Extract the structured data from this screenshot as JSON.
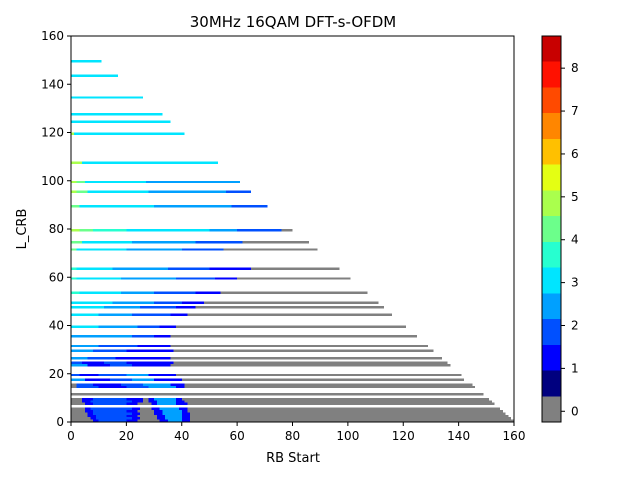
{
  "chart_data": {
    "type": "heatmap",
    "title": "30MHz 16QAM DFT-s-OFDM",
    "xlabel": "RB Start",
    "ylabel": "L_CRB",
    "xlim": [
      0,
      160
    ],
    "ylim": [
      0,
      160
    ],
    "x_ticks": [
      "0",
      "20",
      "40",
      "60",
      "80",
      "100",
      "120",
      "140",
      "160"
    ],
    "y_ticks": [
      "0",
      "20",
      "40",
      "60",
      "80",
      "100",
      "120",
      "140",
      "160"
    ],
    "grid": false,
    "n_rb": 160,
    "colorbar": {
      "colors": [
        "#808080",
        "#00007f",
        "#0000ff",
        "#0050ff",
        "#00a0ff",
        "#00e5ff",
        "#27ffd0",
        "#6cff8b",
        "#aaff4d",
        "#e4ff13",
        "#ffc000",
        "#ff8600",
        "#ff4a00",
        "#ff1100",
        "#c80000"
      ],
      "min": -0.25,
      "max": 8.75,
      "ticks": [
        "0",
        "1",
        "2",
        "3",
        "4",
        "5",
        "6",
        "7",
        "8"
      ]
    },
    "bands": [
      {
        "L": 160,
        "segs": []
      },
      {
        "L": 150,
        "segs": [
          [
            0,
            11,
            5
          ]
        ]
      },
      {
        "L": 144,
        "segs": [
          [
            0,
            17,
            5
          ]
        ]
      },
      {
        "L": 135,
        "segs": [
          [
            0,
            26,
            5
          ]
        ]
      },
      {
        "L": 128,
        "segs": [
          [
            0,
            33,
            5
          ]
        ]
      },
      {
        "L": 125,
        "segs": [
          [
            0,
            36,
            5
          ]
        ]
      },
      {
        "L": 120,
        "segs": [
          [
            0,
            1,
            8
          ],
          [
            1,
            41,
            5
          ]
        ]
      },
      {
        "L": 108,
        "segs": [
          [
            0,
            4,
            8
          ],
          [
            4,
            53,
            5
          ]
        ]
      },
      {
        "L": 100,
        "segs": [
          [
            0,
            2,
            8
          ],
          [
            2,
            5,
            7
          ],
          [
            5,
            27,
            5
          ],
          [
            27,
            61,
            4
          ]
        ]
      },
      {
        "L": 96,
        "segs": [
          [
            0,
            2,
            8
          ],
          [
            2,
            6,
            7
          ],
          [
            6,
            28,
            5
          ],
          [
            28,
            56,
            4
          ],
          [
            56,
            65,
            3
          ]
        ]
      },
      {
        "L": 90,
        "segs": [
          [
            0,
            3,
            7
          ],
          [
            3,
            30,
            5
          ],
          [
            30,
            58,
            4
          ],
          [
            58,
            71,
            3
          ]
        ]
      },
      {
        "L": 80,
        "segs": [
          [
            0,
            3,
            8
          ],
          [
            3,
            8,
            7
          ],
          [
            8,
            20,
            6
          ],
          [
            20,
            50,
            5
          ],
          [
            50,
            60,
            4
          ],
          [
            60,
            76,
            3
          ],
          [
            76,
            80,
            0
          ]
        ]
      },
      {
        "L": 75,
        "segs": [
          [
            0,
            4,
            7
          ],
          [
            4,
            22,
            5
          ],
          [
            22,
            45,
            4
          ],
          [
            45,
            62,
            3
          ],
          [
            62,
            86,
            0
          ]
        ]
      },
      {
        "L": 72,
        "segs": [
          [
            0,
            2,
            7
          ],
          [
            2,
            20,
            5
          ],
          [
            20,
            40,
            4
          ],
          [
            40,
            55,
            3
          ],
          [
            55,
            89,
            0
          ]
        ]
      },
      {
        "L": 64,
        "segs": [
          [
            0,
            2,
            6
          ],
          [
            2,
            15,
            5
          ],
          [
            15,
            35,
            4
          ],
          [
            35,
            50,
            3
          ],
          [
            50,
            65,
            2
          ],
          [
            65,
            97,
            0
          ]
        ]
      },
      {
        "L": 60,
        "segs": [
          [
            0,
            2,
            6
          ],
          [
            2,
            18,
            5
          ],
          [
            18,
            38,
            4
          ],
          [
            38,
            52,
            3
          ],
          [
            52,
            60,
            2
          ],
          [
            60,
            101,
            0
          ]
        ]
      },
      {
        "L": 54,
        "segs": [
          [
            0,
            3,
            6
          ],
          [
            3,
            18,
            5
          ],
          [
            18,
            30,
            4
          ],
          [
            30,
            45,
            3
          ],
          [
            45,
            54,
            2
          ],
          [
            54,
            107,
            0
          ]
        ]
      },
      {
        "L": 50,
        "segs": [
          [
            0,
            15,
            5
          ],
          [
            15,
            30,
            4
          ],
          [
            30,
            40,
            3
          ],
          [
            40,
            48,
            2
          ],
          [
            48,
            111,
            0
          ]
        ]
      },
      {
        "L": 48,
        "segs": [
          [
            0,
            12,
            5
          ],
          [
            12,
            25,
            4
          ],
          [
            25,
            38,
            3
          ],
          [
            38,
            45,
            2
          ],
          [
            45,
            113,
            0
          ]
        ]
      },
      {
        "L": 45,
        "segs": [
          [
            0,
            10,
            5
          ],
          [
            10,
            22,
            4
          ],
          [
            22,
            36,
            3
          ],
          [
            36,
            42,
            2
          ],
          [
            42,
            116,
            0
          ]
        ]
      },
      {
        "L": 40,
        "segs": [
          [
            0,
            10,
            5
          ],
          [
            10,
            24,
            4
          ],
          [
            24,
            32,
            3
          ],
          [
            32,
            38,
            2
          ],
          [
            38,
            121,
            0
          ]
        ]
      },
      {
        "L": 36,
        "segs": [
          [
            0,
            8,
            4
          ],
          [
            8,
            22,
            4
          ],
          [
            22,
            30,
            3
          ],
          [
            30,
            36,
            2
          ],
          [
            36,
            125,
            0
          ]
        ]
      },
      {
        "L": 32,
        "segs": [
          [
            0,
            10,
            4
          ],
          [
            10,
            24,
            3
          ],
          [
            24,
            32,
            2
          ],
          [
            32,
            36,
            2
          ],
          [
            36,
            129,
            0
          ]
        ]
      },
      {
        "L": 30,
        "segs": [
          [
            0,
            8,
            4
          ],
          [
            8,
            20,
            3
          ],
          [
            20,
            32,
            2
          ],
          [
            32,
            37,
            2
          ],
          [
            37,
            131,
            0
          ]
        ]
      },
      {
        "L": 27,
        "segs": [
          [
            0,
            6,
            4
          ],
          [
            6,
            16,
            3
          ],
          [
            16,
            30,
            2
          ],
          [
            30,
            36,
            2
          ],
          [
            36,
            134,
            0
          ]
        ]
      },
      {
        "L": 25,
        "segs": [
          [
            0,
            4,
            3
          ],
          [
            4,
            12,
            2
          ],
          [
            12,
            20,
            3
          ],
          [
            20,
            34,
            2
          ],
          [
            34,
            37,
            2
          ],
          [
            37,
            136,
            0
          ]
        ]
      },
      {
        "L": 24,
        "segs": [
          [
            0,
            6,
            4
          ],
          [
            6,
            14,
            2
          ],
          [
            14,
            22,
            3
          ],
          [
            22,
            36,
            2
          ],
          [
            36,
            137,
            0
          ]
        ]
      },
      {
        "L": 20,
        "segs": [
          [
            0,
            3,
            3
          ],
          [
            3,
            10,
            2
          ],
          [
            10,
            20,
            3
          ],
          [
            20,
            28,
            4
          ],
          [
            28,
            38,
            2
          ],
          [
            38,
            141,
            0
          ]
        ]
      },
      {
        "L": 18,
        "segs": [
          [
            0,
            5,
            4
          ],
          [
            5,
            14,
            2
          ],
          [
            14,
            22,
            3
          ],
          [
            22,
            30,
            4
          ],
          [
            30,
            40,
            2
          ],
          [
            40,
            142,
            0
          ]
        ]
      },
      {
        "L": 16,
        "segs": [
          [
            0,
            2,
            0
          ],
          [
            2,
            8,
            3
          ],
          [
            8,
            18,
            2
          ],
          [
            18,
            26,
            3
          ],
          [
            26,
            36,
            4
          ],
          [
            36,
            41,
            2
          ],
          [
            41,
            145,
            0
          ]
        ]
      },
      {
        "L": 15,
        "segs": [
          [
            0,
            2,
            0
          ],
          [
            2,
            10,
            3
          ],
          [
            10,
            20,
            2
          ],
          [
            20,
            28,
            3
          ],
          [
            28,
            38,
            4
          ],
          [
            38,
            41,
            2
          ],
          [
            41,
            146,
            0
          ]
        ]
      },
      {
        "L": 12,
        "segs": [
          [
            0,
            149,
            0
          ]
        ]
      },
      {
        "L": 10,
        "segs": [
          [
            0,
            4,
            0
          ],
          [
            4,
            8,
            2
          ],
          [
            8,
            20,
            3
          ],
          [
            20,
            26,
            2
          ],
          [
            26,
            28,
            0
          ],
          [
            28,
            30,
            2
          ],
          [
            30,
            38,
            4
          ],
          [
            38,
            40,
            2
          ],
          [
            40,
            151,
            0
          ]
        ]
      },
      {
        "L": 9,
        "segs": [
          [
            0,
            4,
            0
          ],
          [
            4,
            7,
            2
          ],
          [
            7,
            22,
            3
          ],
          [
            22,
            26,
            2
          ],
          [
            26,
            28,
            0
          ],
          [
            28,
            31,
            2
          ],
          [
            31,
            38,
            4
          ],
          [
            38,
            41,
            2
          ],
          [
            41,
            152,
            0
          ]
        ]
      },
      {
        "L": 8,
        "segs": [
          [
            0,
            5,
            0
          ],
          [
            5,
            8,
            2
          ],
          [
            8,
            20,
            3
          ],
          [
            20,
            24,
            2
          ],
          [
            24,
            29,
            0
          ],
          [
            29,
            31,
            2
          ],
          [
            31,
            38,
            4
          ],
          [
            38,
            42,
            2
          ],
          [
            42,
            153,
            0
          ]
        ]
      },
      {
        "L": 6,
        "segs": [
          [
            0,
            5,
            0
          ],
          [
            5,
            7,
            2
          ],
          [
            7,
            22,
            3
          ],
          [
            22,
            25,
            2
          ],
          [
            25,
            29,
            0
          ],
          [
            29,
            32,
            2
          ],
          [
            32,
            39,
            4
          ],
          [
            39,
            42,
            2
          ],
          [
            42,
            155,
            0
          ]
        ]
      },
      {
        "L": 5,
        "segs": [
          [
            0,
            5,
            0
          ],
          [
            5,
            8,
            2
          ],
          [
            8,
            20,
            3
          ],
          [
            20,
            24,
            2
          ],
          [
            24,
            30,
            0
          ],
          [
            30,
            33,
            2
          ],
          [
            33,
            40,
            4
          ],
          [
            40,
            42,
            2
          ],
          [
            42,
            156,
            0
          ]
        ]
      },
      {
        "L": 4,
        "segs": [
          [
            0,
            6,
            0
          ],
          [
            6,
            8,
            2
          ],
          [
            8,
            22,
            3
          ],
          [
            22,
            25,
            2
          ],
          [
            25,
            30,
            0
          ],
          [
            30,
            33,
            2
          ],
          [
            33,
            40,
            4
          ],
          [
            40,
            43,
            2
          ],
          [
            43,
            157,
            0
          ]
        ]
      },
      {
        "L": 3,
        "segs": [
          [
            0,
            6,
            0
          ],
          [
            6,
            9,
            2
          ],
          [
            9,
            20,
            3
          ],
          [
            20,
            24,
            2
          ],
          [
            24,
            31,
            0
          ],
          [
            31,
            34,
            2
          ],
          [
            34,
            40,
            4
          ],
          [
            40,
            43,
            2
          ],
          [
            43,
            158,
            0
          ]
        ]
      },
      {
        "L": 2,
        "segs": [
          [
            0,
            7,
            0
          ],
          [
            7,
            9,
            2
          ],
          [
            9,
            22,
            3
          ],
          [
            22,
            25,
            2
          ],
          [
            25,
            31,
            0
          ],
          [
            31,
            34,
            2
          ],
          [
            34,
            40,
            4
          ],
          [
            40,
            43,
            2
          ],
          [
            43,
            159,
            0
          ]
        ]
      },
      {
        "L": 1,
        "segs": [
          [
            0,
            8,
            0
          ],
          [
            8,
            10,
            2
          ],
          [
            10,
            20,
            3
          ],
          [
            20,
            24,
            2
          ],
          [
            24,
            32,
            0
          ],
          [
            32,
            35,
            2
          ],
          [
            35,
            40,
            4
          ],
          [
            40,
            43,
            2
          ],
          [
            43,
            160,
            0
          ]
        ]
      }
    ]
  }
}
